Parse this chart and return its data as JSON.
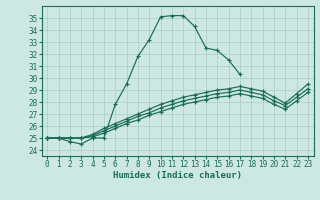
{
  "xlabel": "Humidex (Indice chaleur)",
  "xlim": [
    -0.5,
    23.5
  ],
  "ylim": [
    23.5,
    36.0
  ],
  "xticks": [
    0,
    1,
    2,
    3,
    4,
    5,
    6,
    7,
    8,
    9,
    10,
    11,
    12,
    13,
    14,
    15,
    16,
    17,
    18,
    19,
    20,
    21,
    22,
    23
  ],
  "yticks": [
    24,
    25,
    26,
    27,
    28,
    29,
    30,
    31,
    32,
    33,
    34,
    35
  ],
  "bg_color": "#cce8e0",
  "grid_color": "#aaccC4",
  "line_color": "#1a6b5a",
  "series": [
    [
      25.0,
      25.0,
      24.7,
      24.5,
      25.0,
      25.0,
      27.8,
      29.5,
      31.8,
      33.2,
      35.1,
      35.2,
      35.2,
      34.3,
      32.5,
      32.3,
      31.5,
      30.3,
      null,
      null,
      null,
      null,
      null,
      null
    ],
    [
      25.0,
      25.0,
      25.0,
      25.0,
      25.3,
      25.8,
      26.2,
      26.6,
      27.0,
      27.4,
      27.8,
      28.1,
      28.4,
      28.6,
      28.8,
      29.0,
      29.1,
      29.3,
      29.1,
      28.9,
      28.4,
      27.9,
      28.7,
      29.5
    ],
    [
      25.0,
      25.0,
      25.0,
      25.0,
      25.2,
      25.6,
      26.0,
      26.4,
      26.8,
      27.1,
      27.5,
      27.8,
      28.1,
      28.3,
      28.5,
      28.7,
      28.8,
      29.0,
      28.8,
      28.6,
      28.1,
      27.7,
      28.4,
      29.1
    ],
    [
      25.0,
      25.0,
      25.0,
      25.0,
      25.1,
      25.4,
      25.8,
      26.2,
      26.5,
      26.9,
      27.2,
      27.5,
      27.8,
      28.0,
      28.2,
      28.4,
      28.5,
      28.7,
      28.5,
      28.3,
      27.8,
      27.4,
      28.1,
      28.8
    ]
  ],
  "tick_fontsize": 5.5,
  "xlabel_fontsize": 6.5,
  "marker_size": 3.0,
  "linewidth": 0.85
}
